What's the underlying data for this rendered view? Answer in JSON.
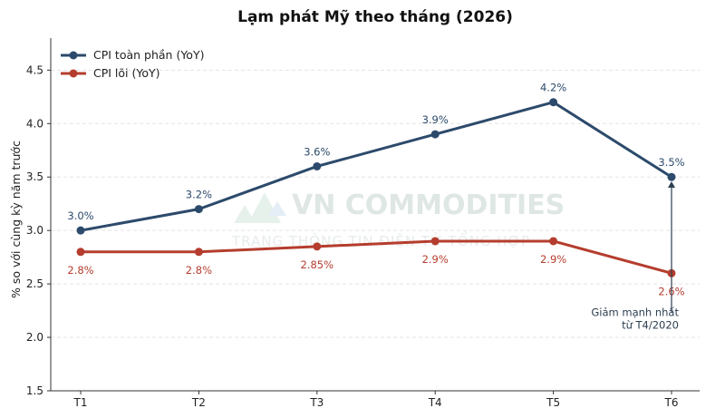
{
  "chart_data": {
    "type": "line",
    "title": "Lạm phát Mỹ theo tháng (2026)",
    "xlabel": "",
    "ylabel": "% so với cùng kỳ năm trước",
    "categories": [
      "T1",
      "T2",
      "T3",
      "T4",
      "T5",
      "T6"
    ],
    "ylim": [
      1.5,
      4.8
    ],
    "yticks": [
      1.5,
      2.0,
      2.5,
      3.0,
      3.5,
      4.0,
      4.5
    ],
    "ytick_labels": [
      "1.5",
      "2.0",
      "2.5",
      "3.0",
      "3.5",
      "4.0",
      "4.5"
    ],
    "grid": "horizontal dashed",
    "legend_position": "top-left",
    "series": [
      {
        "name": "CPI toàn phần (YoY)",
        "color": "#2c4a6b",
        "values": [
          3.0,
          3.2,
          3.6,
          3.9,
          4.2,
          3.5
        ],
        "labels": [
          "3.0%",
          "3.2%",
          "3.6%",
          "3.9%",
          "4.2%",
          "3.5%"
        ],
        "label_position": "above"
      },
      {
        "name": "CPI lõi (YoY)",
        "color": "#b53d2e",
        "values": [
          2.8,
          2.8,
          2.85,
          2.9,
          2.9,
          2.6
        ],
        "labels": [
          "2.8%",
          "2.8%",
          "2.85%",
          "2.9%",
          "2.9%",
          "2.6%"
        ],
        "label_position": "below"
      }
    ],
    "annotation": {
      "lines": [
        "Giảm mạnh nhất",
        "từ T4/2020"
      ],
      "category": "T6",
      "arrow_from": 2.23,
      "arrow_to": 3.46,
      "text_value": 2.1,
      "color": "#2c3e50"
    }
  },
  "watermark": {
    "main": "VN COMMODITIES",
    "sub": "TRANG THÔNG TIN ĐIỆN TỬ TỔNG HỢP"
  }
}
